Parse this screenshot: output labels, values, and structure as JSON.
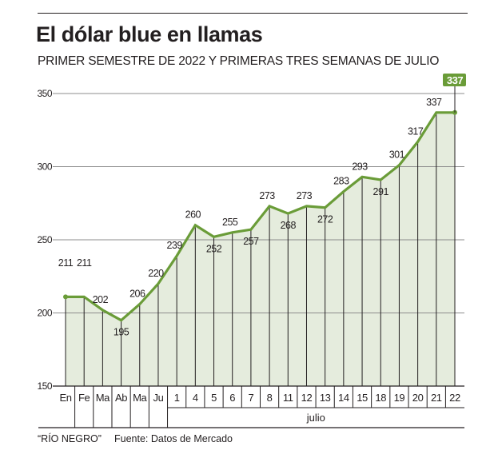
{
  "header": {
    "title": "El dólar blue en llamas",
    "subtitle": "PRIMER SEMESTRE DE 2022 Y PRIMERAS TRES SEMANAS DE JULIO"
  },
  "footer": {
    "credit": "“RÍO NEGRO”",
    "source": "Fuente: Datos de Mercado"
  },
  "colors": {
    "line": "#6a9c38",
    "fill": "#e5ecdd",
    "badge": "#6a9c38",
    "grid": "#8c8c8c",
    "text": "#231f20"
  },
  "chart_data": {
    "type": "area",
    "title": "El dólar blue en llamas",
    "subtitle": "PRIMER SEMESTRE DE 2022 Y PRIMERAS TRES SEMANAS DE JULIO",
    "xlabel": "",
    "ylabel": "",
    "ylim": [
      150,
      350
    ],
    "yticks": [
      150,
      200,
      250,
      300,
      350
    ],
    "grid": true,
    "categories": [
      "En",
      "Fe",
      "Ma",
      "Ab",
      "Ma",
      "Ju",
      "1",
      "4",
      "5",
      "6",
      "7",
      "8",
      "11",
      "12",
      "13",
      "14",
      "15",
      "18",
      "19",
      "20",
      "21",
      "22"
    ],
    "category_group": {
      "label": "julio",
      "from_index": 6,
      "to_index": 21
    },
    "values": [
      211,
      211,
      202,
      195,
      206,
      220,
      239,
      260,
      252,
      255,
      257,
      273,
      268,
      273,
      272,
      283,
      293,
      291,
      301,
      317,
      337,
      337
    ],
    "label_position": [
      "above",
      "above",
      "above",
      "below",
      "above",
      "above",
      "above",
      "above",
      "below",
      "above",
      "below",
      "above",
      "below",
      "above",
      "below",
      "above",
      "above",
      "below",
      "above",
      "above",
      "above",
      "none"
    ],
    "highlight": {
      "index": 21,
      "label": "337"
    }
  }
}
